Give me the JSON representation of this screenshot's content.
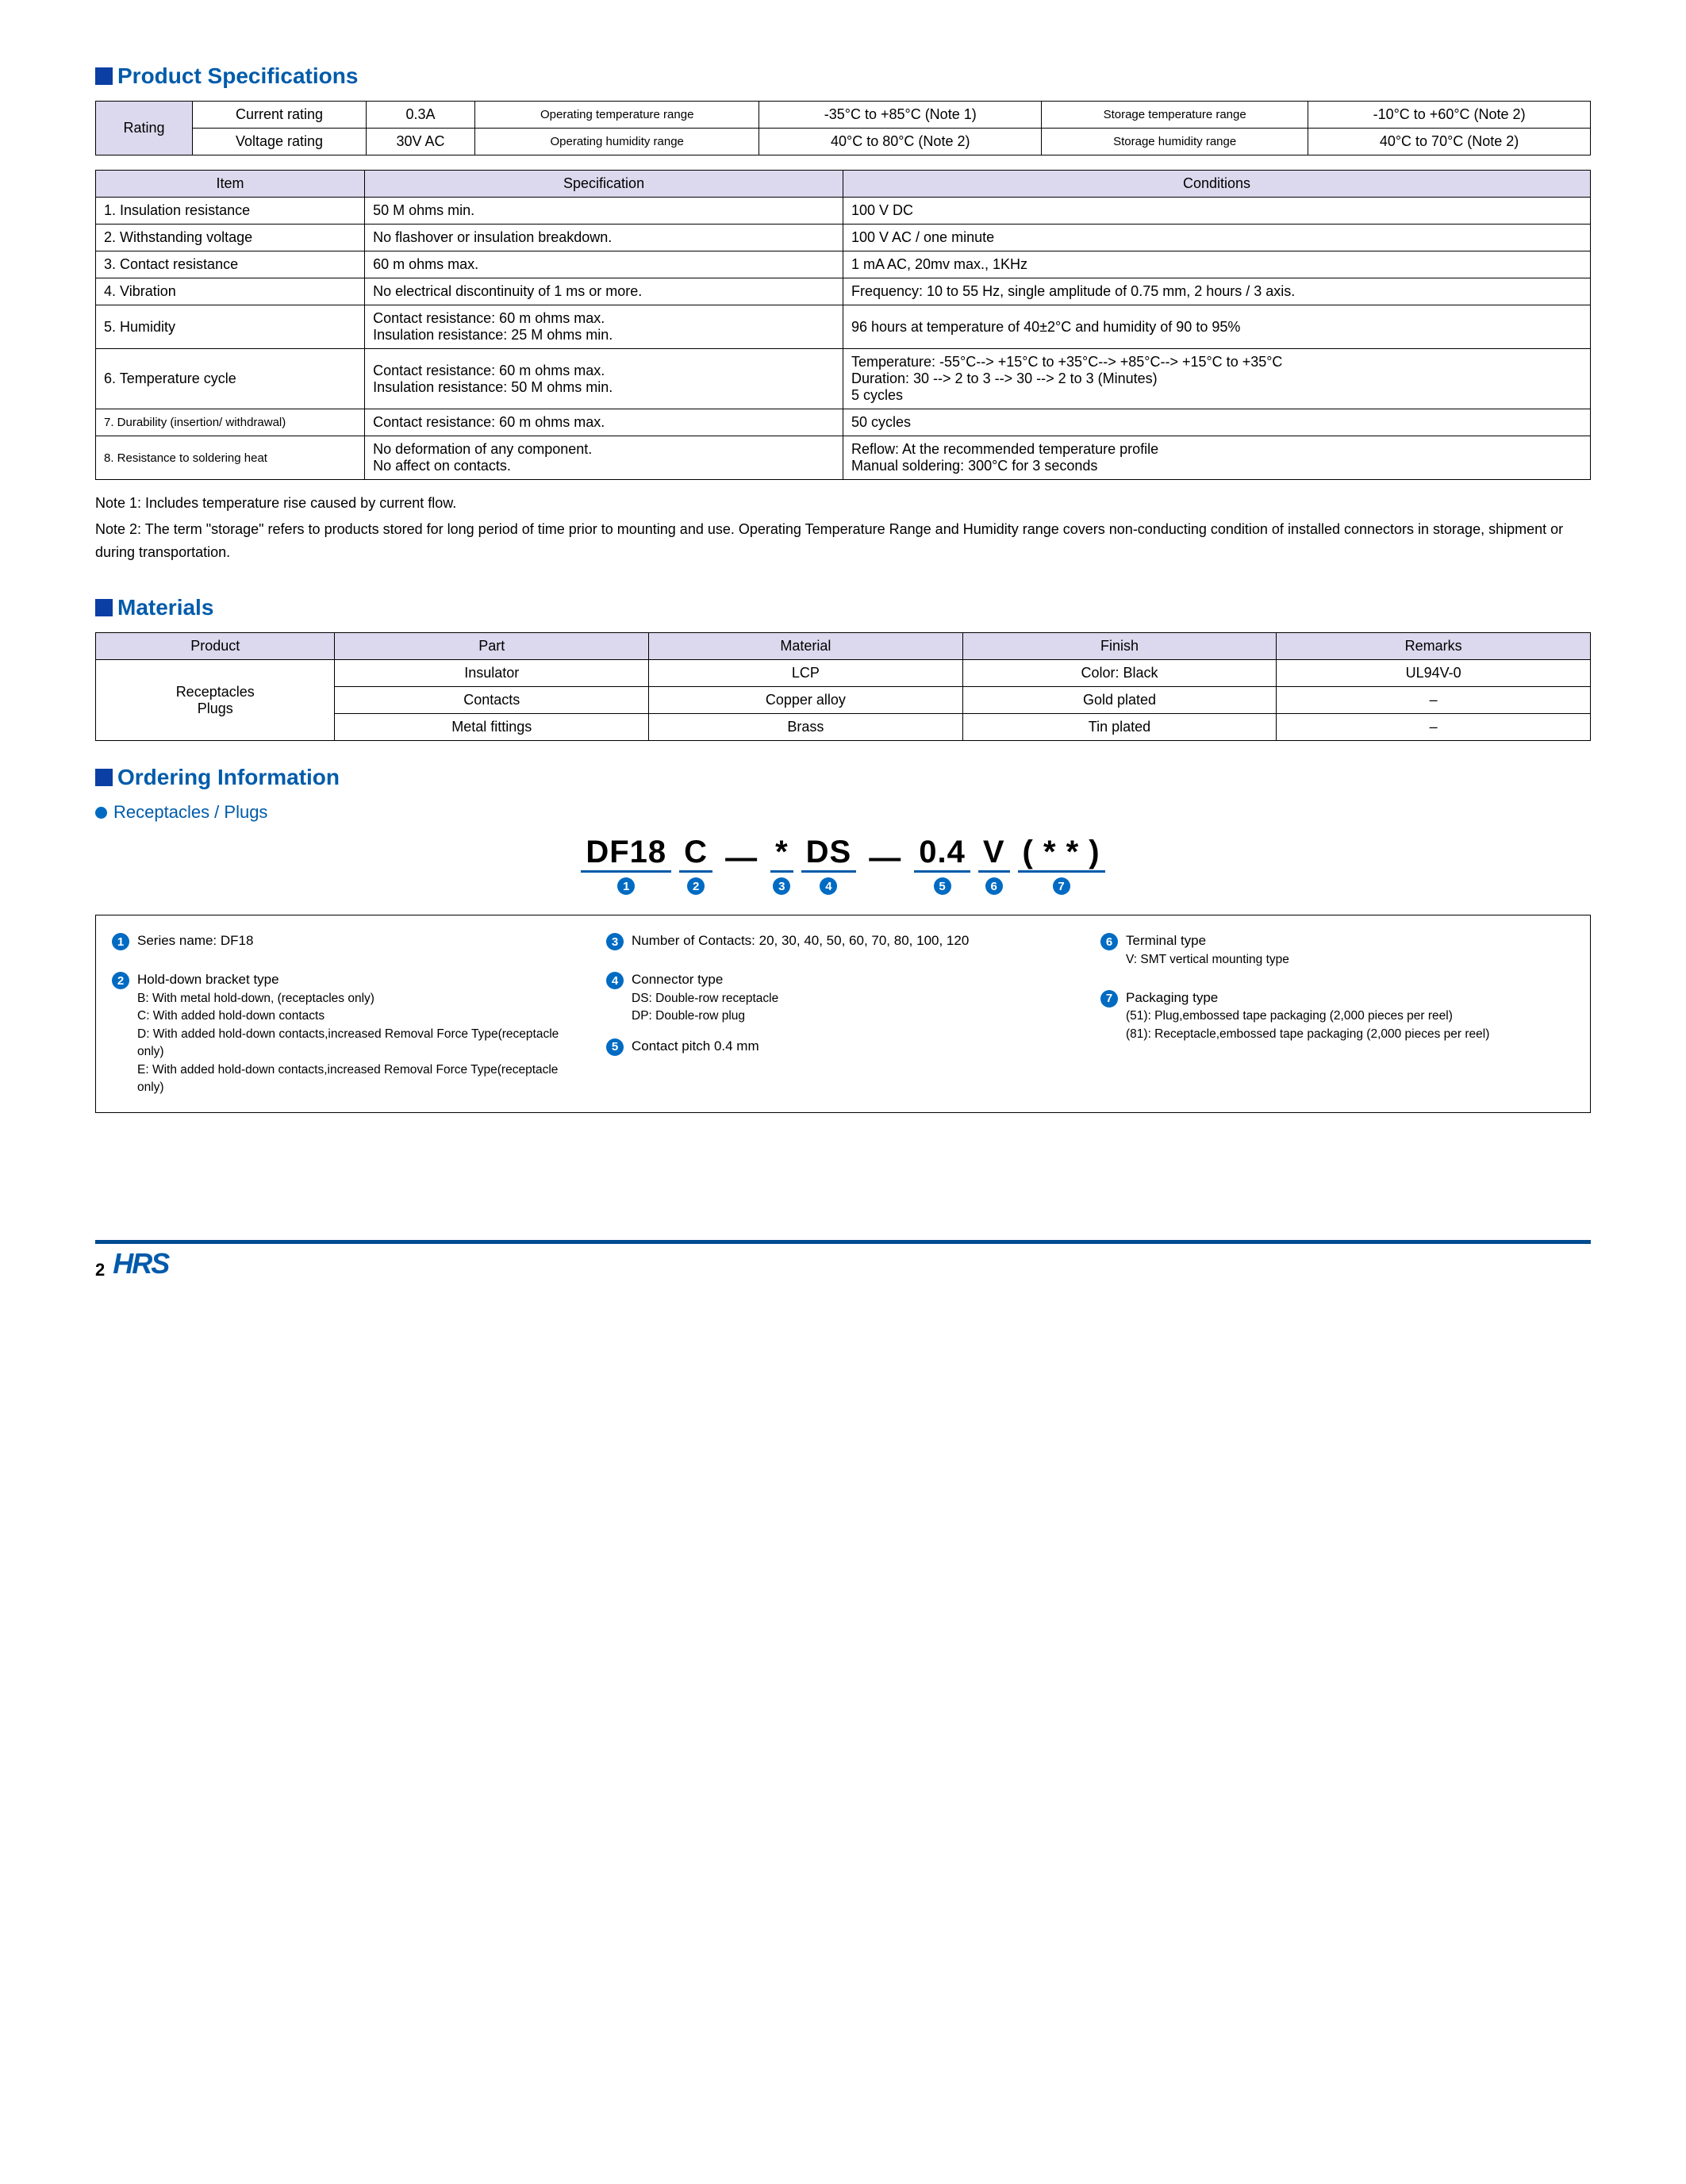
{
  "colors": {
    "brandBlue": "#005baa",
    "markerBlue": "#0b3fa3",
    "circleBlue": "#006bc2",
    "tableHeaderBg": "#dcd9ee",
    "footerBar": "#004b91",
    "logoColor": "#005aab"
  },
  "sections": {
    "specTitle": "Product Specifications",
    "materialsTitle": "Materials",
    "orderingTitle": "Ordering Information",
    "orderingSub": "Receptacles / Plugs"
  },
  "ratingTable": {
    "rowLabel": "Rating",
    "rows": [
      [
        "Current rating",
        "0.3A",
        "Operating temperature range",
        "-35°C  to +85°C (Note 1)",
        "Storage temperature range",
        "-10°C to +60°C (Note 2)"
      ],
      [
        "Voltage rating",
        "30V AC",
        "Operating humidity range",
        "40°C  to   80°C (Note 2)",
        "Storage humidity range",
        "40°C to   70°C (Note 2)"
      ]
    ]
  },
  "specTable": {
    "headers": [
      "Item",
      "Specification",
      "Conditions"
    ],
    "rows": [
      [
        "1. Insulation resistance",
        "50 M ohms min.",
        "100 V DC"
      ],
      [
        "2. Withstanding voltage",
        "No flashover or insulation breakdown.",
        "100 V AC / one minute"
      ],
      [
        "3. Contact resistance",
        "60 m ohms max.",
        "1 mA AC, 20mv max., 1KHz"
      ],
      [
        "4. Vibration",
        "No electrical discontinuity of 1 ms or more.",
        "Frequency: 10 to 55 Hz, single amplitude of 0.75 mm, 2 hours / 3 axis."
      ],
      [
        "5. Humidity",
        "Contact resistance: 60 m ohms max.\nInsulation resistance: 25 M ohms min.",
        "96 hours at temperature of 40±2°C and humidity of 90 to 95%"
      ],
      [
        "6. Temperature cycle",
        "Contact resistance: 60 m ohms max.\nInsulation resistance: 50 M ohms min.",
        "Temperature: -55°C--> +15°C to +35°C--> +85°C--> +15°C  to +35°C\nDuration: 30 --> 2 to 3 --> 30 --> 2 to 3 (Minutes)\n5 cycles"
      ],
      [
        "7. Durability (insertion/ withdrawal)",
        "Contact resistance: 60 m ohms max.",
        "50 cycles"
      ],
      [
        "8. Resistance to soldering heat",
        "No deformation of any component.\nNo affect on contacts.",
        "Reflow: At the recommended temperature profile\nManual soldering: 300°C for 3 seconds"
      ]
    ]
  },
  "notes": [
    "Note 1: Includes temperature rise caused by current flow.",
    "Note 2: The term \"storage\" refers to products stored for long period of time prior to mounting and use. Operating Temperature Range and Humidity range covers non-conducting condition of  installed connectors in storage, shipment or during transportation."
  ],
  "materialsTable": {
    "headers": [
      "Product",
      "Part",
      "Material",
      "Finish",
      "Remarks"
    ],
    "productLabel": "Receptacles\nPlugs",
    "rows": [
      [
        "Insulator",
        "LCP",
        "Color: Black",
        "UL94V-0"
      ],
      [
        "Contacts",
        "Copper alloy",
        "Gold plated",
        "–"
      ],
      [
        "Metal fittings",
        "Brass",
        "Tin plated",
        "–"
      ]
    ]
  },
  "orderingCode": {
    "parts": [
      {
        "text": "DF18",
        "num": "1"
      },
      {
        "text": "C",
        "num": "2"
      },
      {
        "text": "—",
        "num": null,
        "dash": true
      },
      {
        "text": "*",
        "num": "3"
      },
      {
        "text": "DS",
        "num": "4"
      },
      {
        "text": "—",
        "num": null,
        "dash": true
      },
      {
        "text": "0.4",
        "num": "5"
      },
      {
        "text": "V",
        "num": "6"
      },
      {
        "text": "( * * )",
        "num": "7"
      }
    ]
  },
  "orderingItems": {
    "1": {
      "title": "Series name: DF18",
      "lines": []
    },
    "2": {
      "title": "Hold-down bracket type",
      "lines": [
        "B: With metal hold-down, (receptacles only)",
        "C: With  added hold-down contacts",
        "D: With added hold-down contacts,increased Removal Force Type(receptacle only)",
        "E: With added hold-down contacts,increased Removal Force Type(receptacle only)"
      ]
    },
    "3": {
      "title": "Number of Contacts: 20, 30, 40, 50, 60, 70, 80, 100, 120",
      "lines": []
    },
    "4": {
      "title": "Connector type",
      "lines": [
        "DS: Double-row receptacle",
        "DP: Double-row plug"
      ]
    },
    "5": {
      "title": "Contact pitch  0.4 mm",
      "lines": []
    },
    "6": {
      "title": "Terminal type",
      "lines": [
        "V: SMT vertical mounting type"
      ]
    },
    "7": {
      "title": "Packaging type",
      "lines": [
        "(51): Plug,embossed tape packaging (2,000 pieces per reel)",
        "(81): Receptacle,embossed tape packaging (2,000 pieces per reel)"
      ]
    }
  },
  "footer": {
    "pageNum": "2",
    "logo": "HRS"
  }
}
